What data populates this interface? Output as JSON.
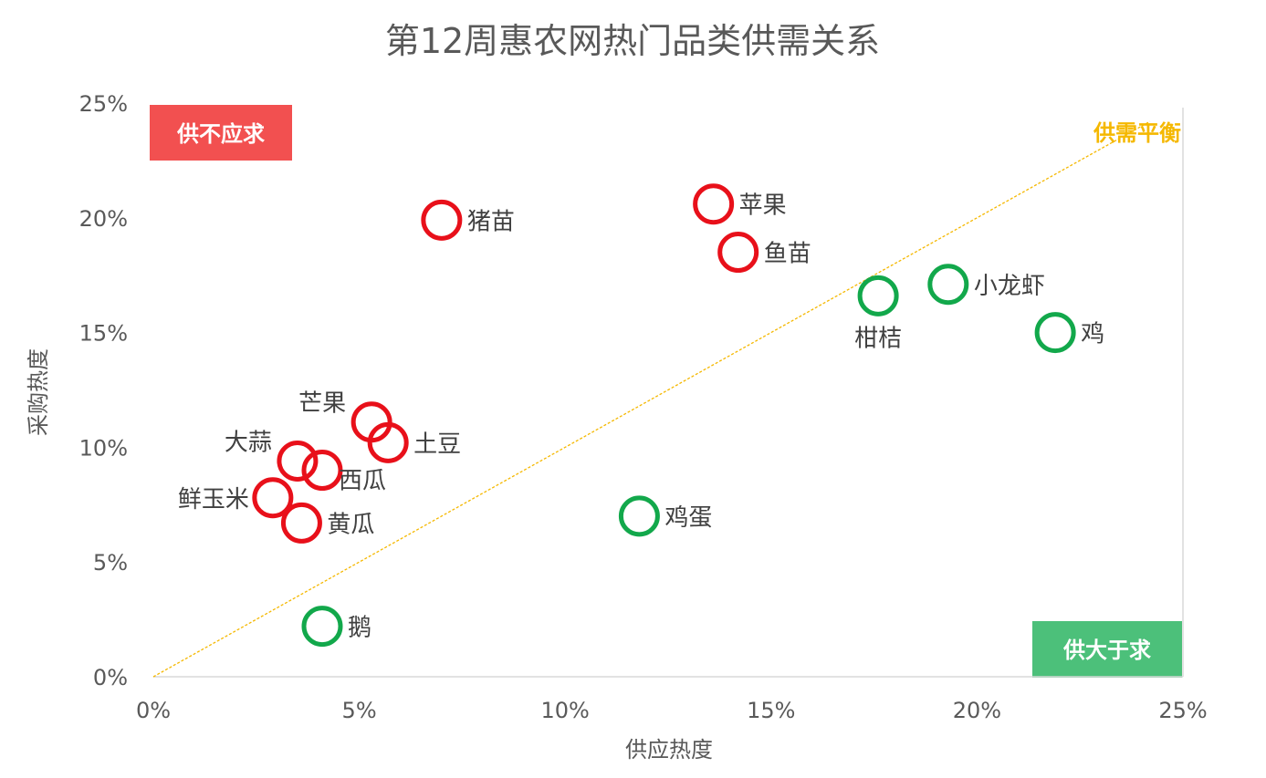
{
  "chart_data": {
    "type": "scatter",
    "title": "第12周惠农网热门品类供需关系",
    "xlabel": "供应热度",
    "ylabel": "采购热度",
    "xlim": [
      0,
      25
    ],
    "ylim": [
      0,
      25
    ],
    "x_ticks": [
      "0%",
      "5%",
      "10%",
      "15%",
      "20%",
      "25%"
    ],
    "y_ticks": [
      "0%",
      "5%",
      "10%",
      "15%",
      "20%",
      "25%"
    ],
    "grid": false,
    "colors": {
      "demand_exceeds_supply": "#e8101a",
      "supply_exceeds_demand": "#12a84b",
      "balance_line": "#f5b800",
      "badge_red": "#f25050",
      "badge_green": "#4cc07a"
    },
    "balance_line_label": "供需平衡",
    "quadrant_labels": {
      "top_left": "供不应求",
      "bottom_right": "供大于求"
    },
    "points": [
      {
        "name": "猪苗",
        "x": 7.0,
        "y": 19.9,
        "group": "demand_exceeds_supply",
        "label_pos": "right"
      },
      {
        "name": "苹果",
        "x": 13.6,
        "y": 20.6,
        "group": "demand_exceeds_supply",
        "label_pos": "right"
      },
      {
        "name": "鱼苗",
        "x": 14.2,
        "y": 18.5,
        "group": "demand_exceeds_supply",
        "label_pos": "right"
      },
      {
        "name": "芒果",
        "x": 5.3,
        "y": 11.1,
        "group": "demand_exceeds_supply",
        "label_pos": "upper-left"
      },
      {
        "name": "土豆",
        "x": 5.7,
        "y": 10.2,
        "group": "demand_exceeds_supply",
        "label_pos": "right"
      },
      {
        "name": "大蒜",
        "x": 3.5,
        "y": 9.4,
        "group": "demand_exceeds_supply",
        "label_pos": "upper-left"
      },
      {
        "name": "西瓜",
        "x": 4.1,
        "y": 9.0,
        "group": "demand_exceeds_supply",
        "label_pos": "lower-right"
      },
      {
        "name": "鲜玉米",
        "x": 2.9,
        "y": 7.8,
        "group": "demand_exceeds_supply",
        "label_pos": "left"
      },
      {
        "name": "黄瓜",
        "x": 3.6,
        "y": 6.7,
        "group": "demand_exceeds_supply",
        "label_pos": "right"
      },
      {
        "name": "柑桔",
        "x": 17.6,
        "y": 16.6,
        "group": "supply_exceeds_demand",
        "label_pos": "below"
      },
      {
        "name": "小龙虾",
        "x": 19.3,
        "y": 17.1,
        "group": "supply_exceeds_demand",
        "label_pos": "right"
      },
      {
        "name": "鸡",
        "x": 21.9,
        "y": 15.0,
        "group": "supply_exceeds_demand",
        "label_pos": "right"
      },
      {
        "name": "鸡蛋",
        "x": 11.8,
        "y": 7.0,
        "group": "supply_exceeds_demand",
        "label_pos": "right"
      },
      {
        "name": "鹅",
        "x": 4.1,
        "y": 2.2,
        "group": "supply_exceeds_demand",
        "label_pos": "right"
      }
    ]
  }
}
